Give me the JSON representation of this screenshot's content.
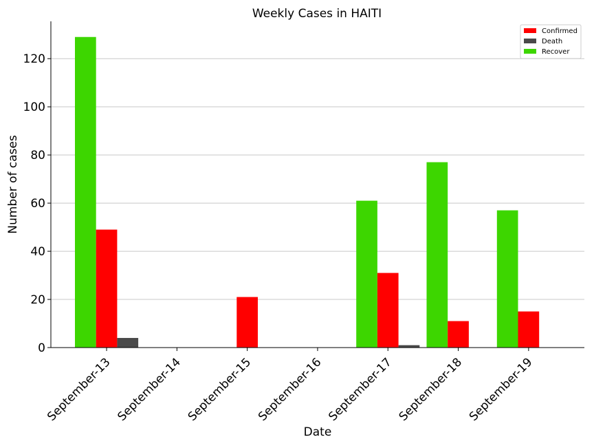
{
  "chart_data": {
    "type": "bar",
    "title": "Weekly Cases in HAITI",
    "xlabel": "Date",
    "ylabel": "Number of cases",
    "categories": [
      "September-13",
      "September-14",
      "September-15",
      "September-16",
      "September-17",
      "September-18",
      "September-19"
    ],
    "series": [
      {
        "name": "Recover",
        "color": "#3dd600",
        "values": [
          129,
          0,
          0,
          0,
          61,
          77,
          57
        ]
      },
      {
        "name": "Confirmed",
        "color": "#ff0000",
        "values": [
          49,
          0,
          21,
          0,
          31,
          11,
          15
        ]
      },
      {
        "name": "Death",
        "color": "#4a4a4a",
        "values": [
          4,
          0,
          0,
          0,
          1,
          0,
          0
        ]
      }
    ],
    "legend": {
      "position": "top-right",
      "order": [
        "Confirmed",
        "Death",
        "Recover"
      ]
    },
    "yticks": [
      0,
      20,
      40,
      60,
      80,
      100,
      120
    ],
    "ylim": [
      0,
      135.5
    ],
    "grid": "y"
  }
}
